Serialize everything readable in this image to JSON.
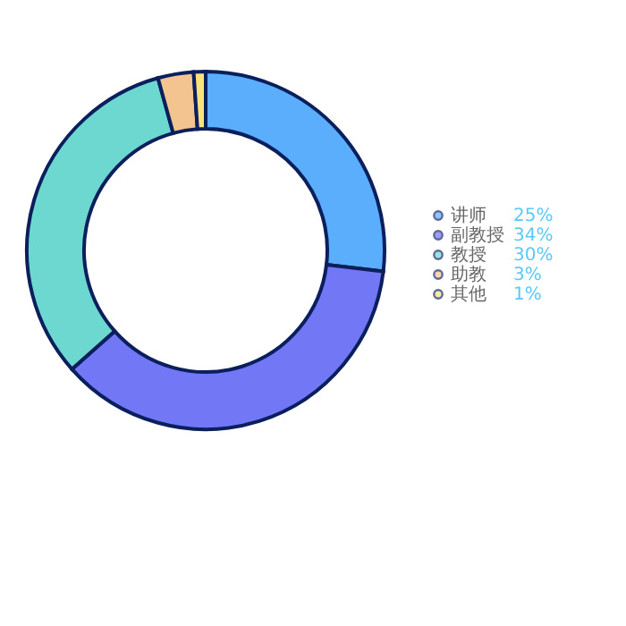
{
  "chart_data": {
    "type": "donut",
    "categories": [
      "讲师",
      "副教授",
      "教授",
      "助教",
      "其他"
    ],
    "values": [
      25,
      34,
      30,
      3,
      1
    ],
    "value_labels": [
      "25%",
      "34%",
      "30%",
      "3%",
      "1%"
    ],
    "colors": [
      "#5aaefc",
      "#7177f5",
      "#6dd8cf",
      "#f3c48f",
      "#f9e27a"
    ],
    "legend": "right"
  }
}
